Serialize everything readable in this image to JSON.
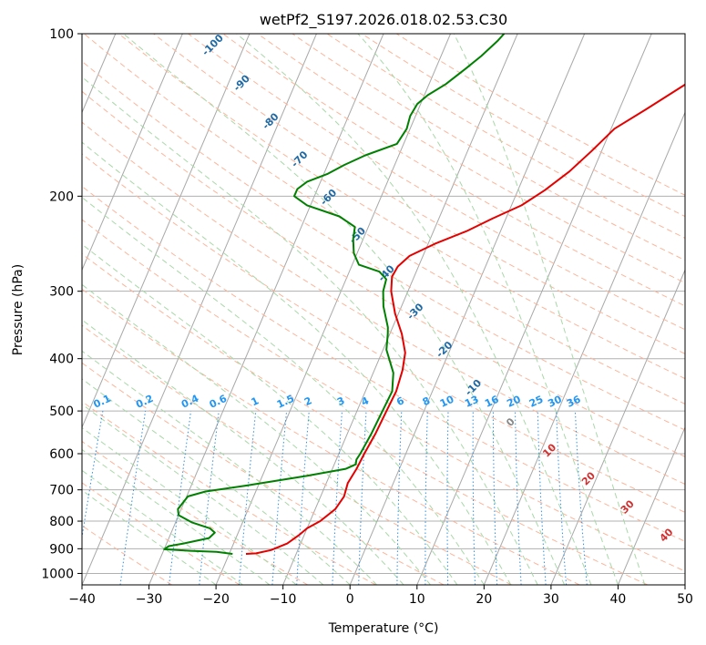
{
  "chart_data": {
    "type": "line",
    "title": "wetPf2_S197.2026.018.02.53.C30",
    "xlabel": "Temperature (°C)",
    "ylabel": "Pressure (hPa)",
    "xlim": [
      -40,
      50
    ],
    "ylim": [
      1050,
      100
    ],
    "x_ticks": [
      "−40",
      "−30",
      "−20",
      "−10",
      "0",
      "10",
      "20",
      "30",
      "40",
      "50"
    ],
    "y_ticks": [
      {
        "value": 100,
        "label": "100"
      },
      {
        "value": 200,
        "label": "200"
      },
      {
        "value": 300,
        "label": "300"
      },
      {
        "value": 400,
        "label": "400"
      },
      {
        "value": 500,
        "label": "500"
      },
      {
        "value": 600,
        "label": "600"
      },
      {
        "value": 700,
        "label": "700"
      },
      {
        "value": 800,
        "label": "800"
      },
      {
        "value": 900,
        "label": "900"
      },
      {
        "value": 1000,
        "label": "1000"
      }
    ],
    "skew": 35,
    "mixing_ratio_labels": [
      "0.1",
      "0.2",
      "0.4",
      "0.6",
      "1",
      "1.5",
      "2",
      "3",
      "4",
      "6",
      "8",
      "10",
      "13",
      "16",
      "20",
      "25",
      "30",
      "36"
    ],
    "moist_adiabat_labels": [
      "-100",
      "-90",
      "-80",
      "-70",
      "-60",
      "-50",
      "-40",
      "-30",
      "-20",
      "-10"
    ],
    "dry_adiabat_labels": [
      "0",
      "10",
      "20",
      "30",
      "40"
    ],
    "series": [
      {
        "name": "temperature",
        "color": "#e50000",
        "points": [
          [
            -17.5,
            920
          ],
          [
            -16,
            918
          ],
          [
            -14,
            905
          ],
          [
            -12,
            880
          ],
          [
            -10.8,
            850
          ],
          [
            -10,
            825
          ],
          [
            -8.5,
            800
          ],
          [
            -7,
            760
          ],
          [
            -6.5,
            720
          ],
          [
            -6.8,
            680
          ],
          [
            -6.4,
            640
          ],
          [
            -6.2,
            600
          ],
          [
            -5.8,
            550
          ],
          [
            -5.6,
            500
          ],
          [
            -5.4,
            460
          ],
          [
            -5.8,
            420
          ],
          [
            -6.5,
            390
          ],
          [
            -8.2,
            360
          ],
          [
            -10.5,
            330
          ],
          [
            -12.5,
            300
          ],
          [
            -13.3,
            282
          ],
          [
            -13.1,
            270
          ],
          [
            -12,
            258
          ],
          [
            -9,
            245
          ],
          [
            -5,
            232
          ],
          [
            -2,
            220
          ],
          [
            1.5,
            208
          ],
          [
            4,
            195
          ],
          [
            6.5,
            180
          ],
          [
            8.5,
            165
          ],
          [
            10.5,
            150
          ],
          [
            14,
            138
          ],
          [
            18,
            125
          ],
          [
            22,
            113
          ],
          [
            25.5,
            104
          ],
          [
            27,
            100
          ]
        ]
      },
      {
        "name": "dewpoint",
        "color": "#008000",
        "points": [
          [
            -19.5,
            920
          ],
          [
            -22,
            912
          ],
          [
            -26,
            908
          ],
          [
            -30,
            902
          ],
          [
            -29.5,
            890
          ],
          [
            -27.5,
            880
          ],
          [
            -24,
            860
          ],
          [
            -23.5,
            840
          ],
          [
            -24.5,
            825
          ],
          [
            -27.5,
            805
          ],
          [
            -30,
            780
          ],
          [
            -30.5,
            760
          ],
          [
            -29.8,
            720
          ],
          [
            -27.5,
            705
          ],
          [
            -22,
            688
          ],
          [
            -13.5,
            660
          ],
          [
            -8,
            640
          ],
          [
            -6.8,
            628
          ],
          [
            -7,
            615
          ],
          [
            -6.8,
            600
          ],
          [
            -6.4,
            550
          ],
          [
            -6.2,
            500
          ],
          [
            -6,
            460
          ],
          [
            -7,
            425
          ],
          [
            -9.5,
            385
          ],
          [
            -10.3,
            360
          ],
          [
            -10.7,
            350
          ],
          [
            -12.7,
            320
          ],
          [
            -13.7,
            300
          ],
          [
            -14,
            285
          ],
          [
            -15.5,
            276
          ],
          [
            -19,
            268
          ],
          [
            -20.5,
            255
          ],
          [
            -21.5,
            240
          ],
          [
            -22,
            228
          ],
          [
            -25,
            218
          ],
          [
            -30.5,
            208
          ],
          [
            -33,
            200
          ],
          [
            -33,
            194
          ],
          [
            -32,
            188
          ],
          [
            -29.5,
            182
          ],
          [
            -27.5,
            175
          ],
          [
            -25,
            168
          ],
          [
            -21,
            160
          ],
          [
            -20.5,
            150
          ],
          [
            -20.8,
            142
          ],
          [
            -20.5,
            135
          ],
          [
            -19.5,
            130
          ],
          [
            -17.5,
            124
          ],
          [
            -15.5,
            116
          ],
          [
            -14,
            110
          ],
          [
            -12.5,
            103
          ],
          [
            -12,
            100
          ]
        ]
      }
    ],
    "colors": {
      "temperature": "#e50000",
      "dewpoint": "#008000",
      "isobar": "#b0b0b0",
      "isotherm": "#a8a8a8",
      "dry_adiabat": "#fcb59a",
      "moist_adiabat": "#a8d8a8",
      "mixing_ratio": "#3090e0",
      "mixing_label": "#2196f3",
      "moist_label": "#1f6aa5",
      "dry_label": "#d03030",
      "zero_label": "#888888"
    }
  }
}
